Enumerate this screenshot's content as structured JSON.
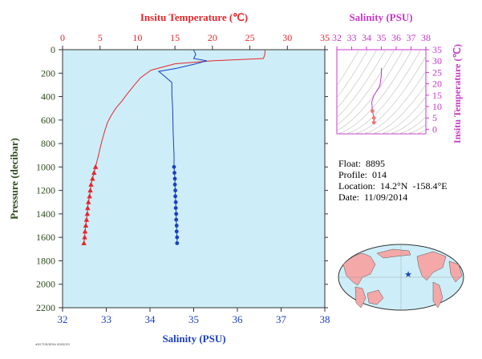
{
  "float_info": {
    "float": "Float:  8895",
    "profile": "Profile:  014",
    "location": "Location:  14.2°N  -158.4°E",
    "date": "Date:  11/09/2014"
  },
  "footer_code": "#DCTOR/DF6A 0D000F0",
  "colors": {
    "temperature": "#e8252a",
    "salinity": "#1a3fc2",
    "ts_axis": "#c838c8",
    "panel_bg": "#cdeef8",
    "land": "#f4a8a8",
    "axis_text": "#2c4a1c"
  },
  "chart_data": [
    {
      "type": "line",
      "title": "",
      "x_top_label": "Insitu Temperature (℃)",
      "x_top_ticks": [
        "0",
        "5",
        "10",
        "15",
        "20",
        "25",
        "30",
        "35"
      ],
      "x_top_lim": [
        0,
        35
      ],
      "x_bottom_label": "Salinity (PSU)",
      "x_bottom_ticks": [
        "32",
        "33",
        "34",
        "35",
        "36",
        "37",
        "38"
      ],
      "x_bottom_lim": [
        32,
        38
      ],
      "ylabel": "Pressure (decibar)",
      "y_ticks": [
        "0",
        "200",
        "400",
        "600",
        "800",
        "1000",
        "1200",
        "1400",
        "1600",
        "1800",
        "2000",
        "2200"
      ],
      "ylim": [
        0,
        2200
      ],
      "y_inverted": true,
      "grid": false,
      "series": [
        {
          "key": "temperature",
          "axis": "top",
          "marker": "triangle",
          "marker_from": 1000,
          "points": [
            [
              27.0,
              5
            ],
            [
              27.0,
              40
            ],
            [
              26.8,
              75
            ],
            [
              20.0,
              95
            ],
            [
              15.0,
              120
            ],
            [
              11.8,
              175
            ],
            [
              10.4,
              240
            ],
            [
              9.6,
              300
            ],
            [
              8.6,
              380
            ],
            [
              7.9,
              440
            ],
            [
              7.1,
              500
            ],
            [
              6.5,
              560
            ],
            [
              6.0,
              620
            ],
            [
              5.6,
              700
            ],
            [
              5.2,
              790
            ],
            [
              4.8,
              900
            ],
            [
              4.4,
              1000
            ],
            [
              4.2,
              1050
            ],
            [
              4.0,
              1100
            ],
            [
              3.8,
              1150
            ],
            [
              3.7,
              1200
            ],
            [
              3.6,
              1250
            ],
            [
              3.45,
              1300
            ],
            [
              3.35,
              1350
            ],
            [
              3.3,
              1400
            ],
            [
              3.2,
              1450
            ],
            [
              3.1,
              1500
            ],
            [
              3.0,
              1550
            ],
            [
              2.95,
              1600
            ],
            [
              2.85,
              1650
            ]
          ]
        },
        {
          "key": "salinity",
          "axis": "bottom",
          "marker": "circle",
          "marker_from": 1000,
          "points": [
            [
              35.0,
              5
            ],
            [
              35.05,
              40
            ],
            [
              35.0,
              75
            ],
            [
              35.3,
              95
            ],
            [
              35.05,
              120
            ],
            [
              34.6,
              160
            ],
            [
              34.2,
              185
            ],
            [
              34.3,
              215
            ],
            [
              34.5,
              280
            ],
            [
              34.5,
              380
            ],
            [
              34.52,
              500
            ],
            [
              34.53,
              700
            ],
            [
              34.55,
              900
            ],
            [
              34.55,
              1000
            ],
            [
              34.56,
              1050
            ],
            [
              34.57,
              1100
            ],
            [
              34.57,
              1150
            ],
            [
              34.58,
              1200
            ],
            [
              34.58,
              1250
            ],
            [
              34.59,
              1300
            ],
            [
              34.59,
              1350
            ],
            [
              34.6,
              1400
            ],
            [
              34.6,
              1450
            ],
            [
              34.61,
              1500
            ],
            [
              34.61,
              1550
            ],
            [
              34.62,
              1600
            ],
            [
              34.62,
              1650
            ]
          ]
        }
      ]
    },
    {
      "type": "line",
      "title": "",
      "x_top_label": "Salinity (PSU)",
      "x_top_ticks": [
        "32",
        "33",
        "34",
        "35",
        "36",
        "37",
        "38"
      ],
      "x_top_lim": [
        32,
        38
      ],
      "ylabel_right": "Insitu Temperature (℃)",
      "y_ticks": [
        "0",
        "5",
        "10",
        "15",
        "20",
        "25",
        "30",
        "35"
      ],
      "ylim": [
        -2,
        35
      ],
      "grid": false,
      "series": [
        {
          "key": "ts",
          "points": [
            [
              34.5,
              3
            ],
            [
              34.5,
              5
            ],
            [
              34.4,
              8
            ],
            [
              34.35,
              12
            ],
            [
              34.5,
              15
            ],
            [
              34.9,
              19
            ],
            [
              35.0,
              24
            ],
            [
              35.0,
              26
            ],
            [
              35.0,
              27
            ]
          ],
          "highlight_from": 8
        }
      ]
    }
  ]
}
